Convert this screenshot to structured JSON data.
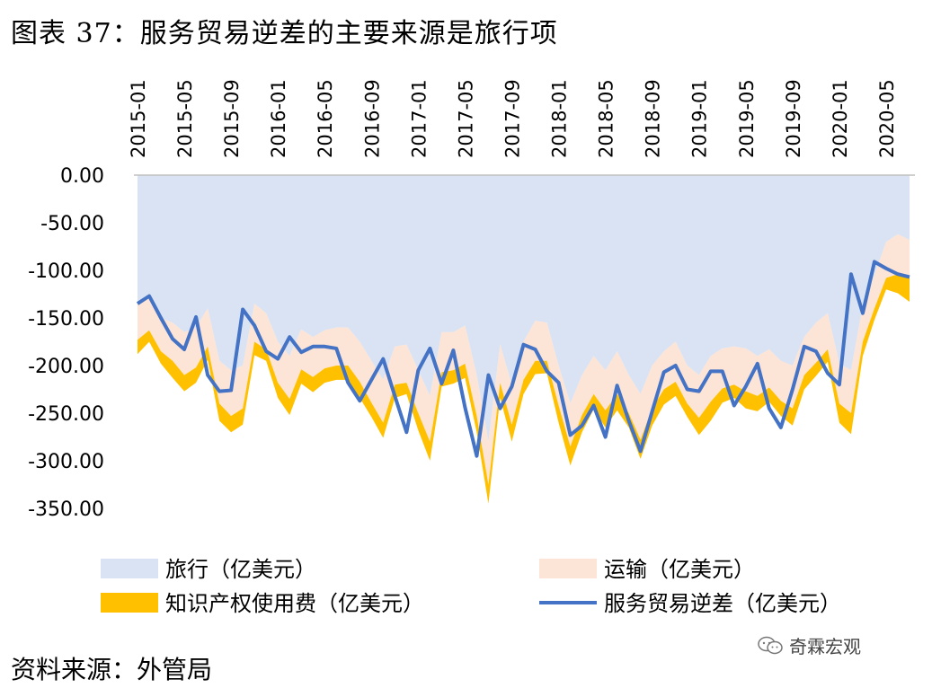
{
  "page_title": "图表 37：服务贸易逆差的主要来源是旅行项",
  "source": "资料来源：外管局",
  "watermark": "奇霖宏观",
  "chart_data": {
    "type": "area",
    "y_axis": {
      "min": -350,
      "max": 0,
      "step": 50,
      "tick_labels": [
        "0.00",
        "-50.00",
        "-100.00",
        "-150.00",
        "-200.00",
        "-250.00",
        "-300.00",
        "-350.00"
      ]
    },
    "x_tick_labels": [
      "2015-01",
      "2015-05",
      "2015-09",
      "2016-01",
      "2016-05",
      "2016-09",
      "2017-01",
      "2017-05",
      "2017-09",
      "2018-01",
      "2018-05",
      "2018-09",
      "2019-01",
      "2019-05",
      "2019-09",
      "2020-01",
      "2020-05"
    ],
    "x": [
      "2015-01",
      "2015-02",
      "2015-03",
      "2015-04",
      "2015-05",
      "2015-06",
      "2015-07",
      "2015-08",
      "2015-09",
      "2015-10",
      "2015-11",
      "2015-12",
      "2016-01",
      "2016-02",
      "2016-03",
      "2016-04",
      "2016-05",
      "2016-06",
      "2016-07",
      "2016-08",
      "2016-09",
      "2016-10",
      "2016-11",
      "2016-12",
      "2017-01",
      "2017-02",
      "2017-03",
      "2017-04",
      "2017-05",
      "2017-06",
      "2017-07",
      "2017-08",
      "2017-09",
      "2017-10",
      "2017-11",
      "2017-12",
      "2018-01",
      "2018-02",
      "2018-03",
      "2018-04",
      "2018-05",
      "2018-06",
      "2018-07",
      "2018-08",
      "2018-09",
      "2018-10",
      "2018-11",
      "2018-12",
      "2019-01",
      "2019-02",
      "2019-03",
      "2019-04",
      "2019-05",
      "2019-06",
      "2019-07",
      "2019-08",
      "2019-09",
      "2019-10",
      "2019-11",
      "2019-12",
      "2020-01",
      "2020-02",
      "2020-03",
      "2020-04",
      "2020-05",
      "2020-06",
      "2020-07"
    ],
    "series": [
      {
        "name": "旅行（亿美元）",
        "color": "#dae3f3",
        "values": [
          -135,
          -128,
          -150,
          -155,
          -165,
          -160,
          -140,
          -195,
          -205,
          -200,
          -135,
          -145,
          -175,
          -190,
          -162,
          -170,
          -163,
          -160,
          -160,
          -175,
          -195,
          -215,
          -180,
          -178,
          -205,
          -232,
          -165,
          -165,
          -158,
          -210,
          -280,
          -178,
          -220,
          -175,
          -153,
          -155,
          -200,
          -240,
          -210,
          -190,
          -205,
          -185,
          -210,
          -230,
          -200,
          -185,
          -175,
          -200,
          -210,
          -190,
          -182,
          -180,
          -182,
          -190,
          -183,
          -195,
          -200,
          -170,
          -155,
          -145,
          -198,
          -205,
          -137,
          -105,
          -70,
          -62,
          -68
        ]
      },
      {
        "name": "运输（亿美元）",
        "color": "#fce4d6",
        "values": [
          -38,
          -35,
          -35,
          -40,
          -45,
          -42,
          -40,
          -45,
          -48,
          -45,
          -40,
          -38,
          -43,
          -45,
          -42,
          -42,
          -40,
          -40,
          -40,
          -42,
          -44,
          -45,
          -40,
          -40,
          -45,
          -48,
          -42,
          -40,
          -40,
          -43,
          -45,
          -40,
          -42,
          -40,
          -42,
          -40,
          -42,
          -45,
          -42,
          -40,
          -42,
          -45,
          -40,
          -48,
          -45,
          -40,
          -42,
          -40,
          -45,
          -48,
          -42,
          -40,
          -45,
          -42,
          -40,
          -42,
          -45,
          -40,
          -42,
          -38,
          -42,
          -45,
          -38,
          -35,
          -38,
          -42,
          -40
        ]
      },
      {
        "name": "知识产权使用费（亿美元）",
        "color": "#ffc000",
        "values": [
          -15,
          -12,
          -13,
          -18,
          -17,
          -16,
          -14,
          -18,
          -17,
          -17,
          -14,
          -12,
          -16,
          -17,
          -15,
          -16,
          -15,
          -15,
          -15,
          -17,
          -15,
          -16,
          -14,
          -12,
          -18,
          -20,
          -15,
          -14,
          -15,
          -17,
          -20,
          -16,
          -18,
          -15,
          -14,
          -13,
          -18,
          -20,
          -18,
          -16,
          -18,
          -17,
          -15,
          -20,
          -18,
          -16,
          -15,
          -14,
          -18,
          -20,
          -15,
          -14,
          -18,
          -16,
          -15,
          -16,
          -18,
          -15,
          -14,
          -13,
          -20,
          -22,
          -15,
          -12,
          -12,
          -20,
          -25
        ]
      },
      {
        "name": "服务贸易逆差（亿美元）",
        "color": "#4472c4",
        "values": [
          -135,
          -127,
          -150,
          -172,
          -183,
          -149,
          -210,
          -227,
          -226,
          -141,
          -158,
          -185,
          -193,
          -170,
          -186,
          -180,
          -180,
          -182,
          -218,
          -237,
          -215,
          -193,
          -232,
          -270,
          -205,
          -182,
          -219,
          -184,
          -244,
          -295,
          -210,
          -245,
          -222,
          -178,
          -183,
          -206,
          -218,
          -273,
          -263,
          -242,
          -275,
          -221,
          -258,
          -290,
          -248,
          -207,
          -200,
          -225,
          -227,
          -206,
          -206,
          -242,
          -222,
          -198,
          -245,
          -265,
          -225,
          -180,
          -185,
          -208,
          -220,
          -104,
          -145,
          -91,
          -98,
          -104,
          -107
        ]
      }
    ]
  }
}
